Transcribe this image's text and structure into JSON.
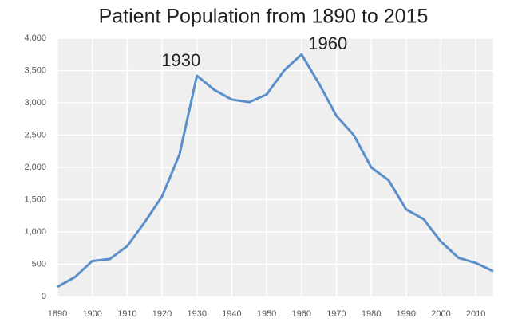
{
  "chart_data": {
    "type": "line",
    "title": "Patient Population from 1890 to 2015",
    "x": [
      1890,
      1895,
      1900,
      1905,
      1910,
      1915,
      1920,
      1925,
      1930,
      1935,
      1940,
      1945,
      1950,
      1955,
      1960,
      1965,
      1970,
      1975,
      1980,
      1985,
      1990,
      1995,
      2000,
      2005,
      2010,
      2015
    ],
    "series": [
      {
        "name": "Patient Population",
        "color": "#5b8fc9",
        "values": [
          150,
          300,
          550,
          580,
          780,
          1150,
          1550,
          2200,
          3420,
          3200,
          3050,
          3010,
          3130,
          3500,
          3750,
          3300,
          2800,
          2500,
          2000,
          1800,
          1350,
          1200,
          850,
          600,
          520,
          390
        ]
      }
    ],
    "xlim": [
      1890,
      2015
    ],
    "xticks": [
      1890,
      1900,
      1910,
      1920,
      1930,
      1940,
      1950,
      1960,
      1970,
      1980,
      1990,
      2000,
      2010
    ],
    "ylim": [
      0,
      4000
    ],
    "yticks": [
      0,
      500,
      {
        "value": 1000,
        "label": "1,000"
      },
      {
        "value": 1500,
        "label": "1,500"
      },
      {
        "value": 2000,
        "label": "2,000"
      },
      {
        "value": 2500,
        "label": "2,500"
      },
      {
        "value": 3000,
        "label": "3,000"
      },
      {
        "value": 3500,
        "label": "3,500"
      },
      {
        "value": 4000,
        "label": "4,000"
      }
    ],
    "grid": true,
    "annotations": [
      {
        "text": "1930",
        "x": 1930,
        "y": 3420
      },
      {
        "text": "1960",
        "x": 1960,
        "y": 3750
      }
    ]
  }
}
